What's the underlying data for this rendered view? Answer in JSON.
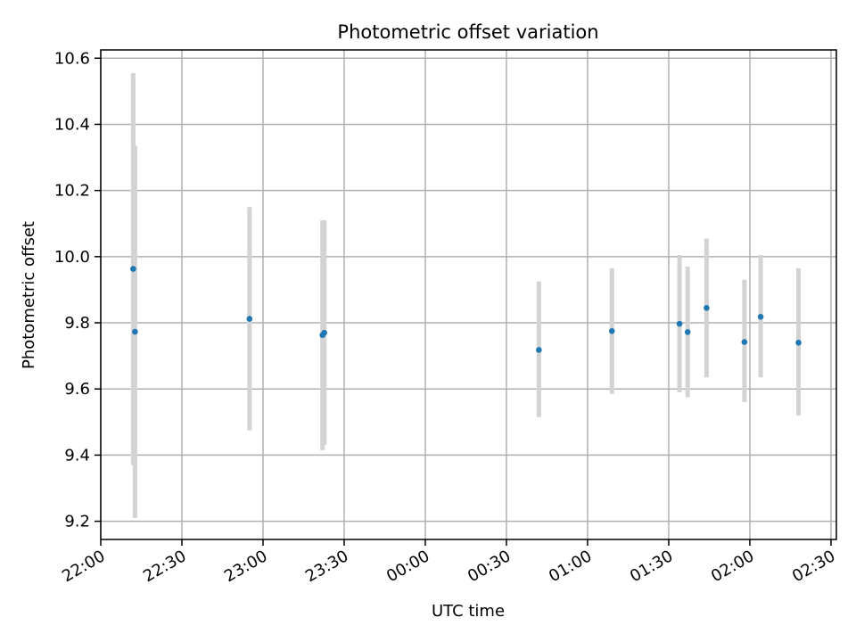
{
  "chart_data": {
    "type": "scatter",
    "title": "Photometric offset variation",
    "xlabel": "UTC time",
    "ylabel": "Photometric offset",
    "xlim": [
      "22:00",
      "02:32"
    ],
    "ylim": [
      9.145,
      10.625
    ],
    "grid": true,
    "x_ticks": [
      "22:00",
      "22:30",
      "23:00",
      "23:30",
      "00:00",
      "00:30",
      "01:00",
      "01:30",
      "02:00",
      "02:30"
    ],
    "y_ticks": [
      "9.2",
      "9.4",
      "9.6",
      "9.8",
      "10.0",
      "10.2",
      "10.4",
      "10.6"
    ],
    "colors": {
      "points": "#1f77b4",
      "errorbars": "#d3d3d3",
      "grid": "#b0b0b0"
    },
    "points": [
      {
        "time": "22:12",
        "y": 9.963,
        "err_low": 9.37,
        "err_high": 10.555
      },
      {
        "time": "22:12",
        "y": 9.773,
        "err_low": 9.21,
        "err_high": 10.335
      },
      {
        "time": "22:55",
        "y": 9.812,
        "err_low": 9.475,
        "err_high": 10.15
      },
      {
        "time": "23:22",
        "y": 9.763,
        "err_low": 9.415,
        "err_high": 10.11
      },
      {
        "time": "23:22",
        "y": 9.77,
        "err_low": 9.43,
        "err_high": 10.11
      },
      {
        "time": "00:42",
        "y": 9.718,
        "err_low": 9.515,
        "err_high": 9.925
      },
      {
        "time": "01:09",
        "y": 9.775,
        "err_low": 9.585,
        "err_high": 9.965
      },
      {
        "time": "01:34",
        "y": 9.797,
        "err_low": 9.59,
        "err_high": 10.005
      },
      {
        "time": "01:37",
        "y": 9.772,
        "err_low": 9.575,
        "err_high": 9.97
      },
      {
        "time": "01:44",
        "y": 9.845,
        "err_low": 9.635,
        "err_high": 10.055
      },
      {
        "time": "01:58",
        "y": 9.742,
        "err_low": 9.56,
        "err_high": 9.93
      },
      {
        "time": "02:04",
        "y": 9.818,
        "err_low": 9.635,
        "err_high": 10.005
      },
      {
        "time": "02:18",
        "y": 9.74,
        "err_low": 9.52,
        "err_high": 9.965
      }
    ]
  }
}
